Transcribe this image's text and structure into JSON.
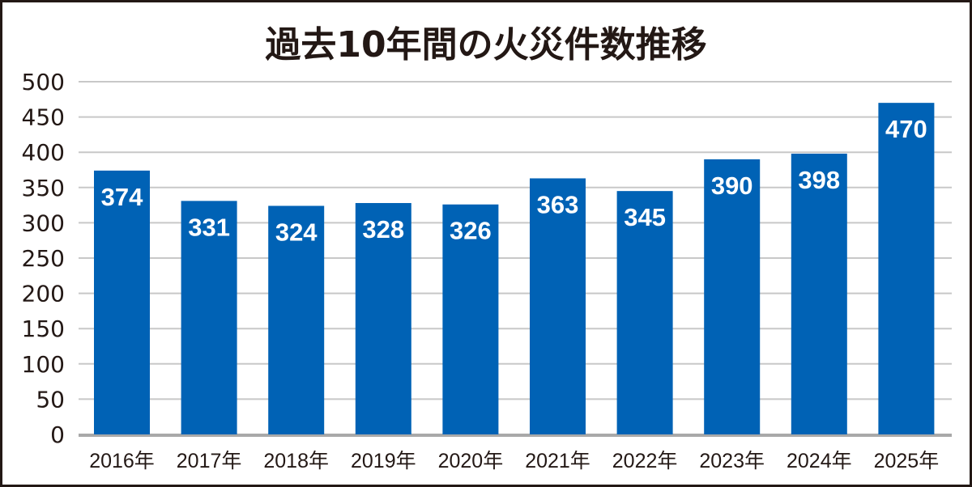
{
  "chart_data": {
    "type": "bar",
    "title": "過去10年間の火災件数推移",
    "categories": [
      "2016年",
      "2017年",
      "2018年",
      "2019年",
      "2020年",
      "2021年",
      "2022年",
      "2023年",
      "2024年",
      "2025年"
    ],
    "values": [
      374,
      331,
      324,
      328,
      326,
      363,
      345,
      390,
      398,
      470
    ],
    "xlabel": "",
    "ylabel": "",
    "ylim": [
      0,
      500
    ],
    "yticks": [
      0,
      50,
      100,
      150,
      200,
      250,
      300,
      350,
      400,
      450,
      500
    ],
    "grid": true,
    "bar_color": "#0062B5",
    "data_labels": true
  }
}
